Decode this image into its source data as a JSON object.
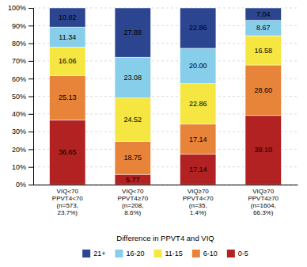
{
  "chart_data": {
    "type": "bar",
    "stacked": true,
    "data_labels": true,
    "grid": true,
    "legend": "bottom",
    "x_label": "Difference in PPVT4 and VIQ",
    "categories": [
      "VIQ<70\nPPVT4<70\n(n=573,\n23.7%)",
      "VIQ<70\nPPVT4≥70\n(n=208,\n8.6%)",
      "VIQ≥70\nPPVT4<70\n(n=35,\n1.4%)",
      "VIQ≥70\nPPVT4≥70\n(n=1604,\n66.3%)"
    ],
    "series": [
      {
        "name": "0-5",
        "color": "#B22222",
        "values": [
          36.65,
          5.77,
          17.14,
          39.1
        ],
        "value_labels": [
          "36.65",
          "5.77",
          "17.14",
          "39.10"
        ]
      },
      {
        "name": "6-10",
        "color": "#E8833A",
        "values": [
          25.13,
          18.75,
          17.14,
          28.6
        ],
        "value_labels": [
          "25.13",
          "18.75",
          "17.14",
          "28.60"
        ]
      },
      {
        "name": "11-15",
        "color": "#F5E642",
        "values": [
          16.06,
          24.52,
          22.86,
          16.58
        ],
        "value_labels": [
          "16.06",
          "24.52",
          "22.86",
          "16.58"
        ]
      },
      {
        "name": "16-20",
        "color": "#87CEEB",
        "values": [
          11.34,
          23.08,
          20.0,
          8.67
        ],
        "value_labels": [
          "11.34",
          "23.08",
          "20.00",
          "8.67"
        ]
      },
      {
        "name": "21+",
        "color": "#2B4590",
        "values": [
          10.82,
          27.88,
          22.86,
          7.04
        ],
        "value_labels": [
          "10.82",
          "27.88",
          "22.86",
          "7.04"
        ]
      }
    ],
    "ylim": [
      0,
      100
    ],
    "yticks": [
      {
        "value": 0,
        "label": "0%"
      },
      {
        "value": 10,
        "label": "10%"
      },
      {
        "value": 20,
        "label": "20%"
      },
      {
        "value": 30,
        "label": "30%"
      },
      {
        "value": 40,
        "label": "40%"
      },
      {
        "value": 50,
        "label": "50%"
      },
      {
        "value": 60,
        "label": "60%"
      },
      {
        "value": 70,
        "label": "70%"
      },
      {
        "value": 80,
        "label": "80%"
      },
      {
        "value": 90,
        "label": "90%"
      },
      {
        "value": 100,
        "label": "100%"
      }
    ]
  }
}
